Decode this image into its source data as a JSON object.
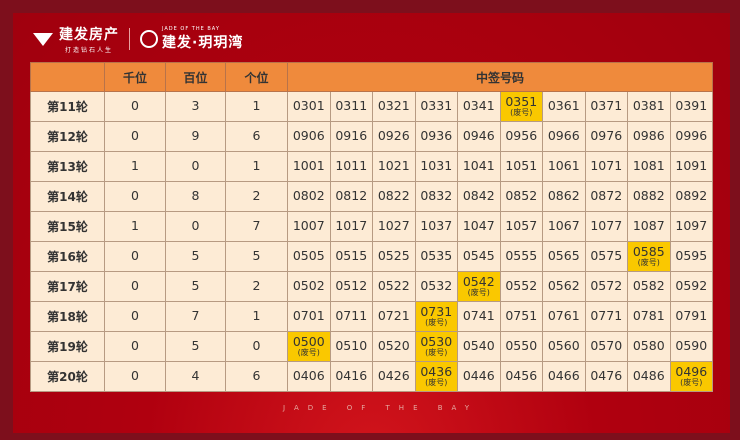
{
  "header": {
    "brand_name": "建发房产",
    "brand_slogan": "打造钻石人生",
    "project_en": "JADE OF THE BAY",
    "project_name": "建发·玥玥湾"
  },
  "table": {
    "columns": [
      "",
      "千位",
      "百位",
      "个位",
      "中签号码"
    ],
    "highlight_color": "#fac800",
    "rows": [
      {
        "label": "第11轮",
        "digits": [
          "0",
          "3",
          "1"
        ],
        "codes": [
          {
            "code": "0301"
          },
          {
            "code": "0311"
          },
          {
            "code": "0321"
          },
          {
            "code": "0331"
          },
          {
            "code": "0341"
          },
          {
            "code": "0351",
            "note": "(废号)"
          },
          {
            "code": "0361"
          },
          {
            "code": "0371"
          },
          {
            "code": "0381"
          },
          {
            "code": "0391"
          }
        ]
      },
      {
        "label": "第12轮",
        "digits": [
          "0",
          "9",
          "6"
        ],
        "codes": [
          {
            "code": "0906"
          },
          {
            "code": "0916"
          },
          {
            "code": "0926"
          },
          {
            "code": "0936"
          },
          {
            "code": "0946"
          },
          {
            "code": "0956"
          },
          {
            "code": "0966"
          },
          {
            "code": "0976"
          },
          {
            "code": "0986"
          },
          {
            "code": "0996"
          }
        ]
      },
      {
        "label": "第13轮",
        "digits": [
          "1",
          "0",
          "1"
        ],
        "codes": [
          {
            "code": "1001"
          },
          {
            "code": "1011"
          },
          {
            "code": "1021"
          },
          {
            "code": "1031"
          },
          {
            "code": "1041"
          },
          {
            "code": "1051"
          },
          {
            "code": "1061"
          },
          {
            "code": "1071"
          },
          {
            "code": "1081"
          },
          {
            "code": "1091"
          }
        ]
      },
      {
        "label": "第14轮",
        "digits": [
          "0",
          "8",
          "2"
        ],
        "codes": [
          {
            "code": "0802"
          },
          {
            "code": "0812"
          },
          {
            "code": "0822"
          },
          {
            "code": "0832"
          },
          {
            "code": "0842"
          },
          {
            "code": "0852"
          },
          {
            "code": "0862"
          },
          {
            "code": "0872"
          },
          {
            "code": "0882"
          },
          {
            "code": "0892"
          }
        ]
      },
      {
        "label": "第15轮",
        "digits": [
          "1",
          "0",
          "7"
        ],
        "codes": [
          {
            "code": "1007"
          },
          {
            "code": "1017"
          },
          {
            "code": "1027"
          },
          {
            "code": "1037"
          },
          {
            "code": "1047"
          },
          {
            "code": "1057"
          },
          {
            "code": "1067"
          },
          {
            "code": "1077"
          },
          {
            "code": "1087"
          },
          {
            "code": "1097"
          }
        ]
      },
      {
        "label": "第16轮",
        "digits": [
          "0",
          "5",
          "5"
        ],
        "codes": [
          {
            "code": "0505"
          },
          {
            "code": "0515"
          },
          {
            "code": "0525"
          },
          {
            "code": "0535"
          },
          {
            "code": "0545"
          },
          {
            "code": "0555"
          },
          {
            "code": "0565"
          },
          {
            "code": "0575"
          },
          {
            "code": "0585",
            "note": "(废号)"
          },
          {
            "code": "0595"
          }
        ]
      },
      {
        "label": "第17轮",
        "digits": [
          "0",
          "5",
          "2"
        ],
        "codes": [
          {
            "code": "0502"
          },
          {
            "code": "0512"
          },
          {
            "code": "0522"
          },
          {
            "code": "0532"
          },
          {
            "code": "0542",
            "note": "(废号)"
          },
          {
            "code": "0552"
          },
          {
            "code": "0562"
          },
          {
            "code": "0572"
          },
          {
            "code": "0582"
          },
          {
            "code": "0592"
          }
        ]
      },
      {
        "label": "第18轮",
        "digits": [
          "0",
          "7",
          "1"
        ],
        "codes": [
          {
            "code": "0701"
          },
          {
            "code": "0711"
          },
          {
            "code": "0721"
          },
          {
            "code": "0731",
            "note": "(废号)"
          },
          {
            "code": "0741"
          },
          {
            "code": "0751"
          },
          {
            "code": "0761"
          },
          {
            "code": "0771"
          },
          {
            "code": "0781"
          },
          {
            "code": "0791"
          }
        ]
      },
      {
        "label": "第19轮",
        "digits": [
          "0",
          "5",
          "0"
        ],
        "codes": [
          {
            "code": "0500",
            "note": "(废号)"
          },
          {
            "code": "0510"
          },
          {
            "code": "0520"
          },
          {
            "code": "0530",
            "note": "(废号)"
          },
          {
            "code": "0540"
          },
          {
            "code": "0550"
          },
          {
            "code": "0560"
          },
          {
            "code": "0570"
          },
          {
            "code": "0580"
          },
          {
            "code": "0590"
          }
        ]
      },
      {
        "label": "第20轮",
        "digits": [
          "0",
          "4",
          "6"
        ],
        "codes": [
          {
            "code": "0406"
          },
          {
            "code": "0416"
          },
          {
            "code": "0426"
          },
          {
            "code": "0436",
            "note": "(废号)"
          },
          {
            "code": "0446"
          },
          {
            "code": "0456"
          },
          {
            "code": "0466"
          },
          {
            "code": "0476"
          },
          {
            "code": "0486"
          },
          {
            "code": "0496",
            "note": "(废号)"
          }
        ]
      }
    ]
  },
  "footer": {
    "text": "JADE OF THE BAY"
  }
}
